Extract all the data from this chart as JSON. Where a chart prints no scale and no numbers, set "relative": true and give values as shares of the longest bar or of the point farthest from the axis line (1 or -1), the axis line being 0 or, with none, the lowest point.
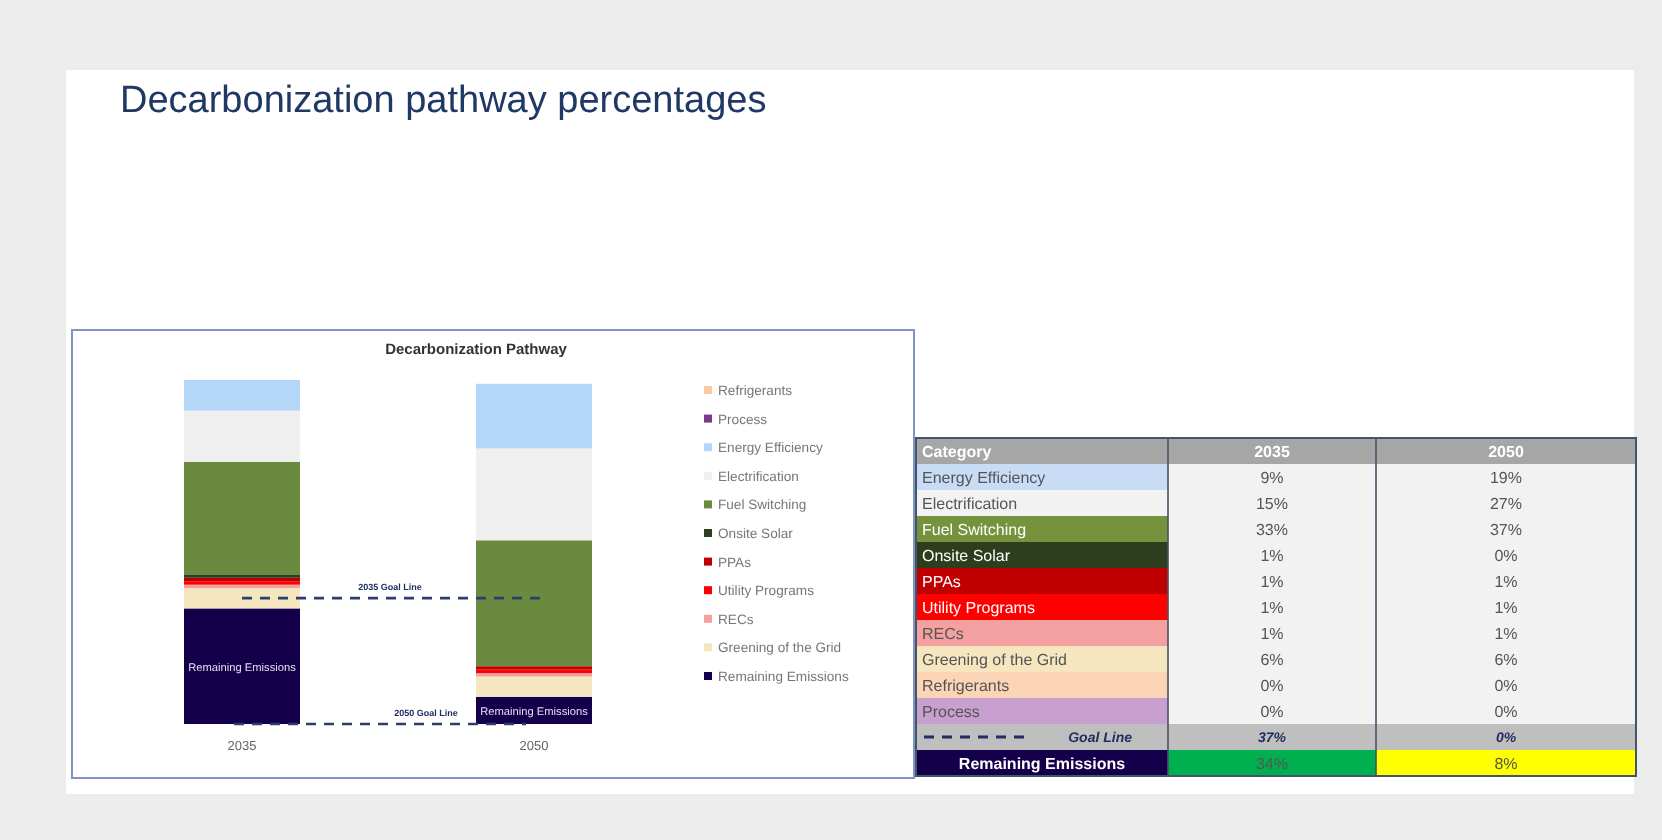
{
  "chart_data": [
    {
      "type": "bar",
      "title": "Decarbonization pathway percentages",
      "subtitle": "Decarbonization Pathway",
      "categories": [
        "2035",
        "2050"
      ],
      "stacked": true,
      "relative": true,
      "tick_labels": "x",
      "legend": "right",
      "series": [
        {
          "name": "Remaining Emissions",
          "color": "#14004a",
          "values": [
            0.336,
            0.079
          ]
        },
        {
          "name": "Greening of the Grid",
          "color": "#f5e6c0",
          "values": [
            0.059,
            0.059
          ]
        },
        {
          "name": "RECs",
          "color": "#f4a0a0",
          "values": [
            0.01,
            0.01
          ]
        },
        {
          "name": "Utility Programs",
          "color": "#ff0000",
          "values": [
            0.01,
            0.01
          ]
        },
        {
          "name": "PPAs",
          "color": "#c00000",
          "values": [
            0.01,
            0.01
          ]
        },
        {
          "name": "Onsite Solar",
          "color": "#2f3d1f",
          "values": [
            0.01,
            0
          ]
        },
        {
          "name": "Fuel Switching",
          "color": "#6a8a3f",
          "values": [
            0.327,
            0.366
          ]
        },
        {
          "name": "Electrification",
          "color": "#efefef",
          "values": [
            0.149,
            0.267
          ]
        },
        {
          "name": "Energy Efficiency",
          "color": "#b4d6f8",
          "values": [
            0.089,
            0.188
          ]
        },
        {
          "name": "Process",
          "color": "#7a3a8a",
          "values": [
            0,
            0
          ]
        },
        {
          "name": "Refrigerants",
          "color": "#fbc8a0",
          "values": [
            0,
            0
          ]
        }
      ],
      "ref_lines": [
        {
          "axis": "y",
          "value": 0.366,
          "label": "2035 Goal Line",
          "color": "#2c3e70",
          "line_style": "dashed"
        },
        {
          "axis": "y",
          "value": 0,
          "label": "2050 Goal Line",
          "color": "#2c3e70",
          "line_style": "dashed"
        }
      ]
    },
    {
      "type": "other",
      "legend_title": "Category",
      "categories": [
        "2035",
        "2050"
      ],
      "y_categories": [
        "Energy Efficiency",
        "Electrification",
        "Fuel Switching",
        "Onsite Solar",
        "PPAs",
        "Utility Programs",
        "RECs",
        "Greening of the Grid",
        "Refrigerants",
        "Process",
        "Goal Line",
        "Remaining Emissions"
      ],
      "series": [
        {
          "color": "#f2f2f2",
          "values": [
            9,
            19
          ],
          "value_labels": [
            "9%",
            "19%"
          ]
        },
        {
          "color": "#f2f2f2",
          "values": [
            15,
            27
          ],
          "value_labels": [
            "15%",
            "27%"
          ]
        },
        {
          "color": "#f2f2f2",
          "values": [
            33,
            37
          ],
          "value_labels": [
            "33%",
            "37%"
          ]
        },
        {
          "color": "#f2f2f2",
          "values": [
            1,
            0
          ],
          "value_labels": [
            "1%",
            "0%"
          ]
        },
        {
          "color": "#f2f2f2",
          "values": [
            1,
            1
          ],
          "value_labels": [
            "1%",
            "1%"
          ]
        },
        {
          "color": "#f2f2f2",
          "values": [
            1,
            1
          ],
          "value_labels": [
            "1%",
            "1%"
          ]
        },
        {
          "color": "#f2f2f2",
          "values": [
            1,
            1
          ],
          "value_labels": [
            "1%",
            "1%"
          ]
        },
        {
          "color": "#f2f2f2",
          "values": [
            6,
            6
          ],
          "value_labels": [
            "6%",
            "6%"
          ]
        },
        {
          "color": "#f2f2f2",
          "values": [
            0,
            0
          ],
          "value_labels": [
            "0%",
            "0%"
          ]
        },
        {
          "color": "#f2f2f2",
          "values": [
            0,
            0
          ],
          "value_labels": [
            "0%",
            "0%"
          ]
        },
        {
          "color": "#bfbfbf",
          "line_style": "dashed",
          "values": [
            37,
            0
          ],
          "value_labels": [
            "37%",
            "0%"
          ]
        },
        {
          "colors": [
            "#00b050",
            "#ffff00"
          ],
          "values": [
            34,
            8
          ],
          "value_labels": [
            "34%",
            "8%"
          ]
        }
      ]
    }
  ]
}
